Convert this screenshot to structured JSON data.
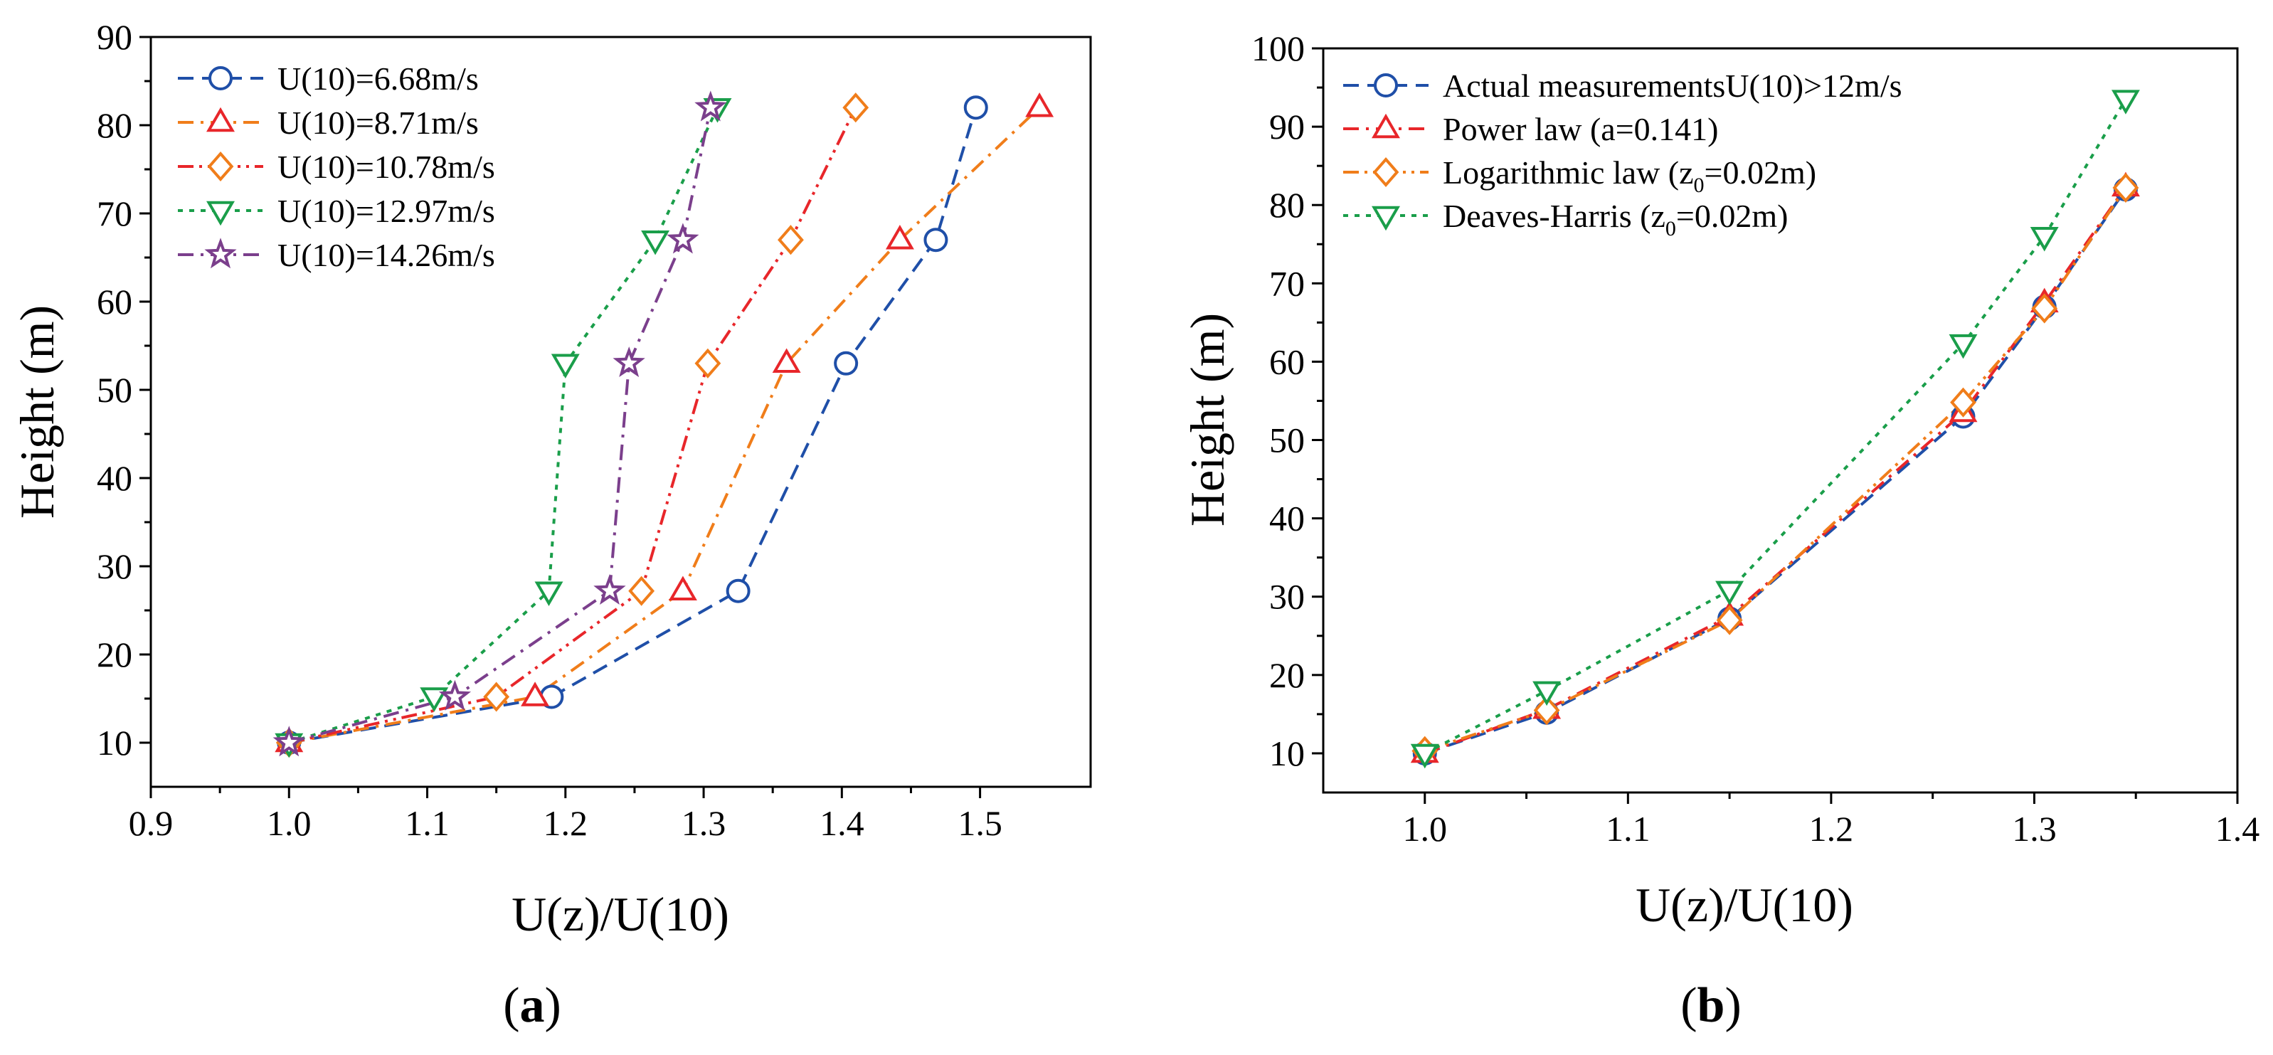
{
  "chart_data": [
    {
      "type": "line",
      "caption": {
        "open": "(",
        "letter": "a",
        "close": ")"
      },
      "xlabel": "U(z)/U(10)",
      "ylabel": "Height (m)",
      "xlim": [
        0.9,
        1.58
      ],
      "ylim": [
        5,
        90
      ],
      "xticks": [
        0.9,
        1.0,
        1.1,
        1.2,
        1.3,
        1.4,
        1.5
      ],
      "xtick_labels": [
        "0.9",
        "1.0",
        "1.1",
        "1.2",
        "1.3",
        "1.4",
        "1.5"
      ],
      "yticks": [
        10,
        20,
        30,
        40,
        50,
        60,
        70,
        80,
        90
      ],
      "ytick_labels": [
        "10",
        "20",
        "30",
        "40",
        "50",
        "60",
        "70",
        "80",
        "90"
      ],
      "grid": false,
      "legend_position": "top-left",
      "series": [
        {
          "name": "U(10)=6.68m/s",
          "color": "#1f4fa8",
          "marker": "circle",
          "dash": "dash",
          "x": [
            1.0,
            1.19,
            1.325,
            1.403,
            1.468,
            1.497
          ],
          "y": [
            10,
            15.2,
            27.2,
            53,
            67,
            82
          ]
        },
        {
          "name": "U(10)=8.71m/s",
          "color": "#f07d1a",
          "marker": "triangle-up",
          "dash": "dashdot",
          "marker_color": "#e8262a",
          "x": [
            1.0,
            1.178,
            1.285,
            1.36,
            1.442,
            1.543
          ],
          "y": [
            10,
            15.2,
            27.2,
            53,
            67,
            82
          ]
        },
        {
          "name": "U(10)=10.78m/s",
          "color": "#e8262a",
          "marker": "diamond",
          "dash": "dashdotdot",
          "marker_color": "#f07d1a",
          "x": [
            1.0,
            1.15,
            1.255,
            1.303,
            1.363,
            1.41
          ],
          "y": [
            10,
            15.2,
            27.2,
            53,
            67,
            82
          ]
        },
        {
          "name": "U(10)=12.97m/s",
          "color": "#1a9e4a",
          "marker": "triangle-down",
          "dash": "dot",
          "x": [
            1.0,
            1.105,
            1.188,
            1.2,
            1.265,
            1.31
          ],
          "y": [
            10,
            15.2,
            27.2,
            53,
            67,
            82
          ]
        },
        {
          "name": "U(10)=14.26m/s",
          "color": "#7b3f8c",
          "marker": "star",
          "dash": "dashdot",
          "x": [
            1.0,
            1.12,
            1.232,
            1.246,
            1.285,
            1.305
          ],
          "y": [
            10,
            15.2,
            27.2,
            53,
            67,
            82
          ]
        }
      ]
    },
    {
      "type": "line",
      "caption": {
        "open": "(",
        "letter": "b",
        "close": ")"
      },
      "xlabel": "U(z)/U(10)",
      "ylabel": "Height (m)",
      "xlim": [
        0.95,
        1.4
      ],
      "ylim": [
        5,
        100
      ],
      "xticks": [
        1.0,
        1.1,
        1.2,
        1.3,
        1.4
      ],
      "xtick_labels": [
        "1.0",
        "1.1",
        "1.2",
        "1.3",
        "1.4"
      ],
      "yticks": [
        10,
        20,
        30,
        40,
        50,
        60,
        70,
        80,
        90,
        100
      ],
      "ytick_labels": [
        "10",
        "20",
        "30",
        "40",
        "50",
        "60",
        "70",
        "80",
        "90",
        "100"
      ],
      "grid": false,
      "legend_position": "top-left",
      "series": [
        {
          "name": "Actual measurementsU(10)>12m/s",
          "color": "#1f4fa8",
          "marker": "circle",
          "dash": "dash",
          "x": [
            1.0,
            1.06,
            1.15,
            1.265,
            1.305,
            1.345
          ],
          "y": [
            10,
            15.2,
            27.2,
            53,
            67,
            82
          ]
        },
        {
          "name": "Power law (a=0.141)",
          "color": "#e8262a",
          "marker": "triangle-up",
          "dash": "dashdot",
          "x": [
            1.0,
            1.06,
            1.15,
            1.265,
            1.305,
            1.345
          ],
          "y": [
            10,
            15.6,
            27.5,
            53.5,
            67.5,
            82.3
          ]
        },
        {
          "name_main": "Logarithmic law (z",
          "name_sub": "0",
          "name_tail": "=0.02m)",
          "color": "#f07d1a",
          "marker": "diamond",
          "dash": "dashdotdot",
          "x": [
            1.0,
            1.06,
            1.15,
            1.265,
            1.305,
            1.345
          ],
          "y": [
            10.3,
            15.5,
            27,
            54.8,
            66.8,
            82.2
          ]
        },
        {
          "name_main": "Deaves-Harris (z",
          "name_sub": "0",
          "name_tail": "=0.02m)",
          "color": "#1a9e4a",
          "marker": "triangle-down",
          "dash": "dot",
          "x": [
            1.0,
            1.06,
            1.15,
            1.265,
            1.305,
            1.345
          ],
          "y": [
            10,
            18,
            30.8,
            62.3,
            76,
            93.5
          ]
        }
      ]
    }
  ]
}
